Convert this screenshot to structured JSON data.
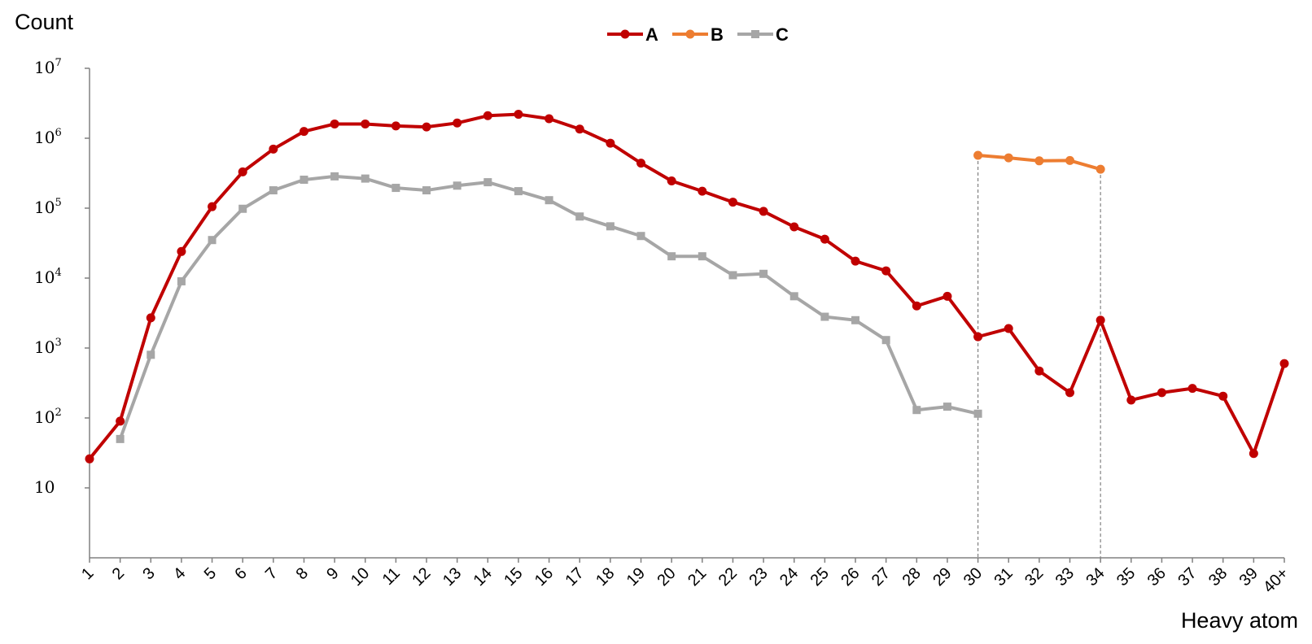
{
  "chart_data": {
    "type": "line",
    "scale_y": "log",
    "ylabel": "Count",
    "xlabel": "Heavy atom",
    "ylim": [
      1,
      10000000
    ],
    "yticks": [
      {
        "base": "10",
        "exp": "7",
        "value": 10000000
      },
      {
        "base": "10",
        "exp": "6",
        "value": 1000000
      },
      {
        "base": "10",
        "exp": "5",
        "value": 100000
      },
      {
        "base": "10",
        "exp": "4",
        "value": 10000
      },
      {
        "base": "10",
        "exp": "3",
        "value": 1000
      },
      {
        "base": "10",
        "exp": "2",
        "value": 100
      },
      {
        "base": "10",
        "exp": "",
        "value": 10
      }
    ],
    "categories": [
      "1",
      "2",
      "3",
      "4",
      "5",
      "6",
      "7",
      "8",
      "9",
      "10",
      "11",
      "12",
      "13",
      "14",
      "15",
      "16",
      "17",
      "18",
      "19",
      "20",
      "21",
      "22",
      "23",
      "24",
      "25",
      "26",
      "27",
      "28",
      "29",
      "30",
      "31",
      "32",
      "33",
      "34",
      "35",
      "36",
      "37",
      "38",
      "39",
      "40+"
    ],
    "legend_position": "top-center",
    "grid": false,
    "series": [
      {
        "name": "A",
        "color": "#C00000",
        "marker": "circle",
        "values": [
          26,
          90,
          2700,
          24000,
          105000,
          330000,
          700000,
          1250000,
          1600000,
          1600000,
          1500000,
          1450000,
          1650000,
          2100000,
          2200000,
          1900000,
          1350000,
          850000,
          440000,
          245000,
          175000,
          122000,
          90000,
          54000,
          36000,
          17500,
          12700,
          4000,
          5500,
          1450,
          1900,
          470,
          230,
          2500,
          180,
          230,
          265,
          205,
          31,
          600
        ]
      },
      {
        "name": "B",
        "color": "#ED7D31",
        "marker": "circle",
        "values": [
          null,
          null,
          null,
          null,
          null,
          null,
          null,
          null,
          null,
          null,
          null,
          null,
          null,
          null,
          null,
          null,
          null,
          null,
          null,
          null,
          null,
          null,
          null,
          null,
          null,
          null,
          null,
          null,
          null,
          570000,
          525000,
          475000,
          480000,
          360000,
          null,
          null,
          null,
          null,
          null,
          null
        ]
      },
      {
        "name": "C",
        "color": "#A6A6A6",
        "marker": "square",
        "values": [
          null,
          50,
          800,
          9000,
          35000,
          98000,
          180000,
          255000,
          285000,
          265000,
          195000,
          180000,
          210000,
          235000,
          175000,
          130000,
          76000,
          55000,
          40000,
          20500,
          20500,
          11000,
          11500,
          5500,
          2800,
          2500,
          1300,
          130,
          145,
          115,
          null,
          null,
          null,
          null,
          null,
          null,
          null,
          null,
          null,
          null
        ]
      }
    ],
    "guides": [
      "30",
      "34"
    ]
  }
}
